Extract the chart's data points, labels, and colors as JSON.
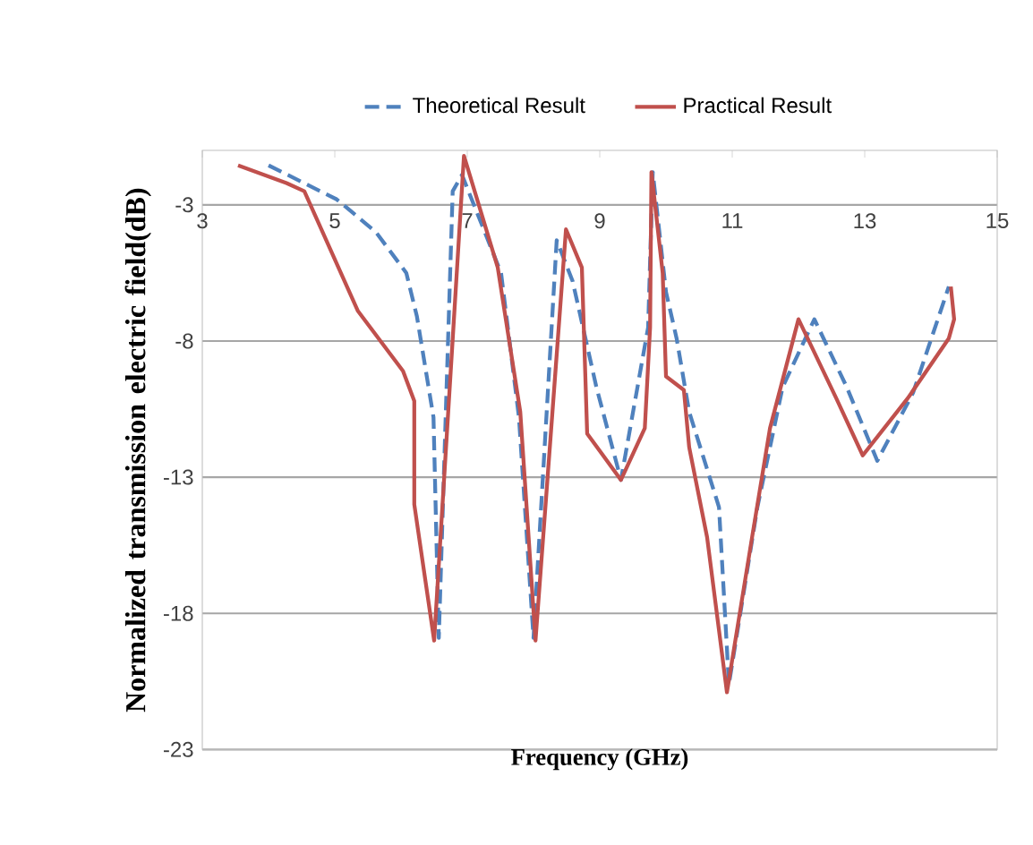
{
  "chart_data": {
    "type": "line",
    "xlabel": "Frequency (GHz)",
    "ylabel": "Normalized transmission electric field(dB)",
    "xlim": [
      3,
      15
    ],
    "ylim": [
      -23,
      -1
    ],
    "xticks": [
      3,
      5,
      7,
      9,
      11,
      13,
      15
    ],
    "yticks": [
      -23,
      -18,
      -13,
      -8,
      -3
    ],
    "grid": "y",
    "legend": "top",
    "marker": "none",
    "series": [
      {
        "name": "Theoretical Result",
        "color": "#4f81bd",
        "line_style": "dashed",
        "x": [
          4.0,
          5.03,
          5.62,
          6.08,
          6.24,
          6.49,
          6.57,
          6.78,
          6.92,
          7.51,
          7.78,
          8.0,
          8.35,
          8.59,
          8.95,
          9.32,
          9.73,
          9.8,
          10.0,
          10.16,
          10.35,
          10.8,
          10.95,
          11.38,
          11.76,
          12.24,
          12.73,
          13.19,
          13.73,
          14.27
        ],
        "values": [
          -1.55,
          -2.8,
          -4.0,
          -5.5,
          -7.1,
          -10.8,
          -18.9,
          -2.5,
          -1.9,
          -5.5,
          -10.8,
          -18.9,
          -4.3,
          -5.8,
          -9.7,
          -13.1,
          -7.5,
          -1.8,
          -6.2,
          -7.9,
          -10.6,
          -14.1,
          -20.6,
          -14.1,
          -9.7,
          -7.2,
          -9.7,
          -12.4,
          -9.9,
          -6.0
        ]
      },
      {
        "name": "Practical Result",
        "color": "#c0504d",
        "line_style": "solid",
        "x": [
          3.54,
          4.27,
          4.54,
          5.35,
          6.03,
          6.2,
          6.2,
          6.5,
          6.95,
          7.46,
          7.8,
          8.03,
          8.49,
          8.73,
          8.81,
          9.32,
          9.68,
          9.76,
          9.78,
          9.95,
          10.0,
          10.27,
          10.35,
          10.62,
          10.92,
          11.3,
          11.57,
          12.0,
          12.57,
          12.97,
          13.65,
          14.27,
          14.35,
          14.3
        ],
        "values": [
          -1.55,
          -2.2,
          -2.5,
          -6.9,
          -9.1,
          -10.2,
          -14.0,
          -19.0,
          -1.2,
          -5.3,
          -10.6,
          -19.0,
          -3.9,
          -5.3,
          -11.4,
          -13.1,
          -11.2,
          -7.5,
          -1.8,
          -5.5,
          -9.3,
          -9.8,
          -11.9,
          -15.2,
          -20.9,
          -15.2,
          -11.2,
          -7.2,
          -10.1,
          -12.2,
          -10.1,
          -7.9,
          -7.2,
          -6.0
        ]
      }
    ]
  }
}
